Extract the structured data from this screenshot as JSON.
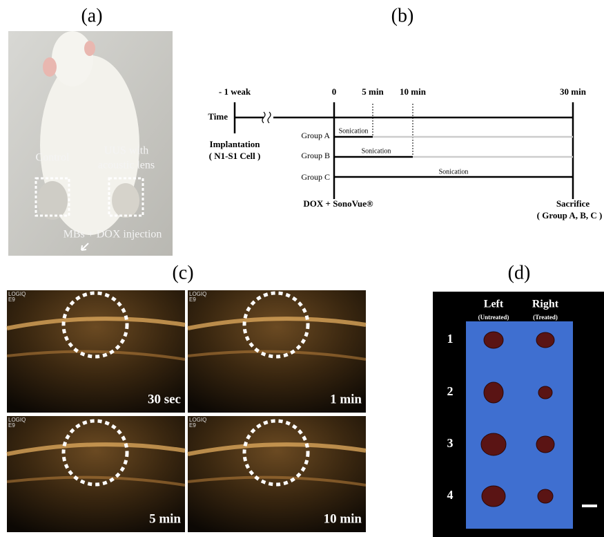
{
  "panels": {
    "a": {
      "label": "(a)",
      "annotations": {
        "control": "Control",
        "uus_line1": "UUS with",
        "uus_line2": "acoustic lens",
        "injection": "MBs + DOX injection"
      }
    },
    "b": {
      "label": "(b)",
      "time_label": "Time",
      "time_points": [
        "- 1 weak",
        "0",
        "5 min",
        "10 min",
        "30 min"
      ],
      "implantation": "Implantation",
      "cell": "( N1-S1 Cell )",
      "groups": [
        {
          "name": "Group A",
          "sonication": "Sonication"
        },
        {
          "name": "Group B",
          "sonication": "Sonication"
        },
        {
          "name": "Group C",
          "sonication": "Sonication"
        }
      ],
      "injection": "DOX + SonoVue®",
      "sacrifice": "Sacrifice",
      "sacrifice_groups": "( Group A, B, C )"
    },
    "c": {
      "label": "(c)",
      "images": [
        {
          "scanner_lines": [
            "LOGIQ",
            "E9"
          ],
          "time": "30 sec"
        },
        {
          "scanner_lines": [
            "LOGIQ",
            "E9"
          ],
          "time": "1 min"
        },
        {
          "scanner_lines": [
            "LOGIQ",
            "E9"
          ],
          "time": "5 min"
        },
        {
          "scanner_lines": [
            "LOGIQ",
            "E9"
          ],
          "time": "10 min"
        }
      ]
    },
    "d": {
      "label": "(d)",
      "columns": [
        {
          "title": "Left",
          "subtitle": "(Untreated)"
        },
        {
          "title": "Right",
          "subtitle": "(Treated)"
        }
      ],
      "rows": [
        "1",
        "2",
        "3",
        "4"
      ]
    }
  }
}
